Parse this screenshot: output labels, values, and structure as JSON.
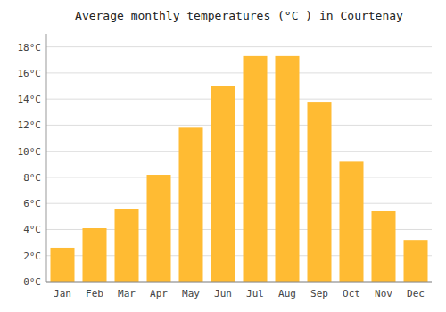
{
  "chart_data": {
    "type": "bar",
    "title": "Average monthly temperatures (°C ) in Courtenay",
    "categories": [
      "Jan",
      "Feb",
      "Mar",
      "Apr",
      "May",
      "Jun",
      "Jul",
      "Aug",
      "Sep",
      "Oct",
      "Nov",
      "Dec"
    ],
    "values": [
      2.6,
      4.1,
      5.6,
      8.2,
      11.8,
      15.0,
      17.3,
      17.3,
      13.8,
      9.2,
      5.4,
      3.2
    ],
    "color": "#FFBB33",
    "ylim": [
      0,
      19
    ],
    "yticks": [
      {
        "value": 0,
        "label": "0°C"
      },
      {
        "value": 2,
        "label": "2°C"
      },
      {
        "value": 4,
        "label": "4°C"
      },
      {
        "value": 6,
        "label": "6°C"
      },
      {
        "value": 8,
        "label": "8°C"
      },
      {
        "value": 10,
        "label": "10°C"
      },
      {
        "value": 12,
        "label": "12°C"
      },
      {
        "value": 14,
        "label": "14°C"
      },
      {
        "value": 16,
        "label": "16°C"
      },
      {
        "value": 18,
        "label": "18°C"
      }
    ],
    "grid": true
  }
}
